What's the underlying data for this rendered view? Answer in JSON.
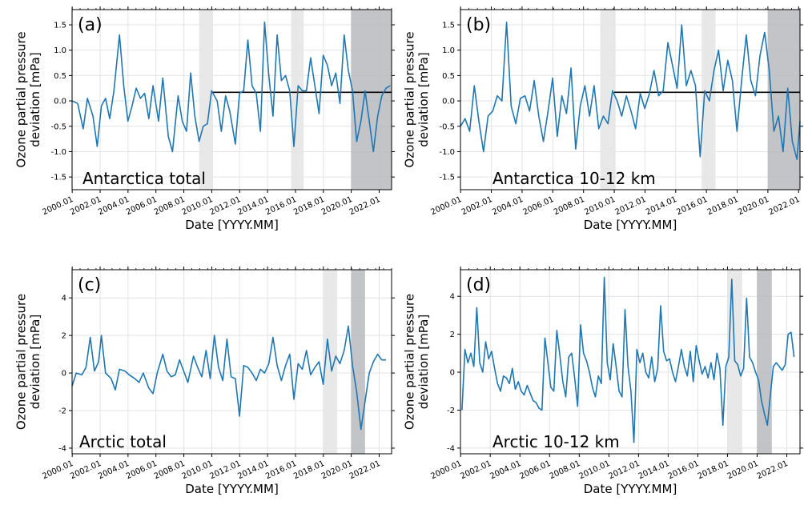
{
  "figure": {
    "xlabel": "Date [YYYY.MM]",
    "ylabel_line1": "Ozone partial pressure",
    "ylabel_line2": "deviation [mPa]"
  },
  "colors": {
    "series": "#1f77b4",
    "band_light": "#e6e6e6",
    "band_dark": "#b9babd",
    "reference_line": "#000000",
    "grid": "#e3e3e3"
  },
  "chart_data": [
    {
      "type": "line",
      "panel": "(a)",
      "region": "Antarctica total",
      "xlabel": "Date [YYYY.MM]",
      "ylabel": "Ozone partial pressure deviation [mPa]",
      "xlim": [
        2000.0,
        2022.9
      ],
      "ylim": [
        -1.75,
        1.8
      ],
      "xticks": [
        2000.01,
        2002.01,
        2004.01,
        2006.01,
        2008.01,
        2010.01,
        2012.01,
        2014.01,
        2016.01,
        2018.01,
        2020.01,
        2022.01
      ],
      "yticks": [
        -1.5,
        -1.0,
        -0.5,
        0.0,
        0.5,
        1.0,
        1.5
      ],
      "grid": true,
      "shaded_periods": [
        {
          "start": 2009.1,
          "end": 2010.1,
          "shade": "light"
        },
        {
          "start": 2015.7,
          "end": 2016.6,
          "shade": "light"
        },
        {
          "start": 2020.0,
          "end": 2022.9,
          "shade": "dark"
        }
      ],
      "reference_line": {
        "start": 2010.0,
        "end": 2022.9,
        "value": 0.17
      },
      "series": [
        {
          "x": [
            2000.0,
            2000.4,
            2000.8,
            2001.1,
            2001.5,
            2001.8,
            2002.1,
            2002.4,
            2002.7,
            2003.0,
            2003.4,
            2003.7,
            2004.0,
            2004.3,
            2004.6,
            2004.9,
            2005.2,
            2005.5,
            2005.8,
            2006.2,
            2006.5,
            2006.9,
            2007.2,
            2007.6,
            2007.9,
            2008.2,
            2008.5,
            2008.8,
            2009.1,
            2009.4,
            2009.7,
            2010.0,
            2010.4,
            2010.7,
            2011.0,
            2011.3,
            2011.7,
            2012.0,
            2012.3,
            2012.6,
            2012.9,
            2013.2,
            2013.5,
            2013.8,
            2014.1,
            2014.4,
            2014.7,
            2015.0,
            2015.3,
            2015.6,
            2015.9,
            2016.2,
            2016.5,
            2016.8,
            2017.1,
            2017.4,
            2017.7,
            2018.0,
            2018.3,
            2018.6,
            2018.9,
            2019.2,
            2019.5,
            2019.8,
            2020.1,
            2020.4,
            2020.7,
            2021.0,
            2021.3,
            2021.6,
            2021.9,
            2022.2,
            2022.5,
            2022.8
          ],
          "y": [
            0.0,
            -0.05,
            -0.55,
            0.05,
            -0.3,
            -0.9,
            -0.1,
            0.05,
            -0.35,
            0.2,
            1.3,
            0.3,
            -0.4,
            -0.1,
            0.25,
            0.05,
            0.15,
            -0.35,
            0.3,
            -0.4,
            0.45,
            -0.7,
            -1.0,
            0.1,
            -0.4,
            -0.6,
            0.55,
            -0.3,
            -0.8,
            -0.5,
            -0.45,
            0.2,
            0.0,
            -0.6,
            0.1,
            -0.2,
            -0.85,
            0.15,
            0.2,
            1.2,
            0.3,
            0.15,
            -0.6,
            1.55,
            0.5,
            -0.3,
            1.3,
            0.4,
            0.5,
            0.2,
            -0.9,
            0.3,
            0.2,
            0.2,
            0.85,
            0.3,
            -0.25,
            0.9,
            0.7,
            0.3,
            0.55,
            -0.05,
            1.3,
            0.6,
            0.2,
            -0.8,
            -0.4,
            0.2,
            -0.4,
            -1.0,
            -0.3,
            0.1,
            0.25,
            0.3
          ]
        }
      ]
    },
    {
      "type": "line",
      "panel": "(b)",
      "region": "Antarctica 10-12 km",
      "xlabel": "Date [YYYY.MM]",
      "ylabel": "Ozone partial pressure deviation [mPa]",
      "xlim": [
        2000.0,
        2022.1
      ],
      "ylim": [
        -1.75,
        1.8
      ],
      "xticks": [
        2000.01,
        2002.01,
        2004.01,
        2006.01,
        2008.01,
        2010.01,
        2012.01,
        2014.01,
        2016.01,
        2018.01,
        2020.01,
        2022.01
      ],
      "yticks": [
        -1.5,
        -1.0,
        -0.5,
        0.0,
        0.5,
        1.0,
        1.5
      ],
      "grid": true,
      "shaded_periods": [
        {
          "start": 2009.1,
          "end": 2010.1,
          "shade": "light"
        },
        {
          "start": 2015.7,
          "end": 2016.6,
          "shade": "light"
        },
        {
          "start": 2020.0,
          "end": 2022.1,
          "shade": "dark"
        }
      ],
      "reference_line": {
        "start": 2010.0,
        "end": 2022.1,
        "value": 0.17
      },
      "series": [
        {
          "x": [
            2000.0,
            2000.3,
            2000.6,
            2000.9,
            2001.2,
            2001.5,
            2001.8,
            2002.1,
            2002.4,
            2002.7,
            2003.0,
            2003.3,
            2003.6,
            2003.9,
            2004.2,
            2004.5,
            2004.8,
            2005.1,
            2005.4,
            2005.7,
            2006.0,
            2006.3,
            2006.6,
            2006.9,
            2007.2,
            2007.5,
            2007.8,
            2008.1,
            2008.4,
            2008.7,
            2009.0,
            2009.3,
            2009.6,
            2009.9,
            2010.2,
            2010.5,
            2010.8,
            2011.1,
            2011.4,
            2011.7,
            2012.0,
            2012.3,
            2012.6,
            2012.9,
            2013.2,
            2013.5,
            2013.8,
            2014.1,
            2014.4,
            2014.7,
            2015.0,
            2015.3,
            2015.6,
            2015.9,
            2016.2,
            2016.5,
            2016.8,
            2017.1,
            2017.4,
            2017.7,
            2018.0,
            2018.3,
            2018.6,
            2018.9,
            2019.2,
            2019.5,
            2019.8,
            2020.1,
            2020.4,
            2020.7,
            2021.0,
            2021.3,
            2021.6,
            2021.9,
            2022.1
          ],
          "y": [
            -0.5,
            -0.35,
            -0.6,
            0.3,
            -0.4,
            -1.0,
            -0.3,
            -0.2,
            0.1,
            0.0,
            1.55,
            -0.1,
            -0.45,
            0.05,
            0.1,
            -0.2,
            0.4,
            -0.3,
            -0.8,
            -0.2,
            0.45,
            -0.7,
            0.1,
            -0.25,
            0.65,
            -0.95,
            -0.1,
            0.3,
            -0.3,
            0.3,
            -0.55,
            -0.3,
            -0.45,
            0.2,
            0.0,
            -0.3,
            0.1,
            -0.2,
            -0.55,
            0.15,
            -0.15,
            0.15,
            0.6,
            0.1,
            0.2,
            1.15,
            0.7,
            0.25,
            1.5,
            0.3,
            0.6,
            0.3,
            -1.1,
            0.2,
            0.0,
            0.6,
            1.0,
            0.2,
            0.8,
            0.4,
            -0.6,
            0.4,
            1.3,
            0.4,
            0.1,
            0.9,
            1.35,
            0.6,
            -0.6,
            -0.3,
            -1.0,
            0.25,
            -0.8,
            -1.15,
            -0.4
          ]
        }
      ]
    },
    {
      "type": "line",
      "panel": "(c)",
      "region": "Arctic total",
      "xlabel": "Date [YYYY.MM]",
      "ylabel": "Ozone partial pressure deviation [mPa]",
      "xlim": [
        2000.0,
        2022.9
      ],
      "ylim": [
        -4.3,
        5.5
      ],
      "xticks": [
        2000.01,
        2002.01,
        2004.01,
        2006.01,
        2008.01,
        2010.01,
        2012.01,
        2014.01,
        2016.01,
        2018.01,
        2020.01,
        2022.01
      ],
      "yticks": [
        -4,
        -2,
        0,
        2,
        4
      ],
      "grid": true,
      "shaded_periods": [
        {
          "start": 2018.0,
          "end": 2019.0,
          "shade": "light"
        },
        {
          "start": 2020.0,
          "end": 2021.0,
          "shade": "dark"
        }
      ],
      "series": [
        {
          "x": [
            2000.0,
            2000.3,
            2000.7,
            2001.0,
            2001.3,
            2001.6,
            2001.9,
            2002.1,
            2002.4,
            2002.8,
            2003.1,
            2003.4,
            2003.8,
            2004.1,
            2004.5,
            2004.8,
            2005.1,
            2005.5,
            2005.8,
            2006.1,
            2006.5,
            2006.8,
            2007.1,
            2007.4,
            2007.7,
            2008.0,
            2008.3,
            2008.7,
            2009.0,
            2009.3,
            2009.6,
            2009.9,
            2010.2,
            2010.5,
            2010.8,
            2011.1,
            2011.4,
            2011.7,
            2012.0,
            2012.3,
            2012.6,
            2012.9,
            2013.2,
            2013.5,
            2013.8,
            2014.1,
            2014.4,
            2014.7,
            2015.0,
            2015.3,
            2015.6,
            2015.9,
            2016.2,
            2016.5,
            2016.8,
            2017.1,
            2017.4,
            2017.7,
            2018.0,
            2018.3,
            2018.6,
            2018.9,
            2019.2,
            2019.5,
            2019.8,
            2020.1,
            2020.4,
            2020.7,
            2021.0,
            2021.3,
            2021.6,
            2021.9,
            2022.2,
            2022.5
          ],
          "y": [
            -0.7,
            0.0,
            -0.1,
            0.3,
            1.9,
            0.1,
            0.6,
            2.0,
            0.0,
            -0.3,
            -0.9,
            0.2,
            0.1,
            -0.1,
            -0.3,
            -0.5,
            0.0,
            -0.8,
            -1.1,
            0.0,
            1.0,
            0.1,
            -0.2,
            -0.1,
            0.7,
            0.1,
            -0.5,
            0.9,
            0.3,
            -0.2,
            1.2,
            -0.3,
            2.0,
            0.3,
            -0.4,
            1.8,
            -0.2,
            -0.3,
            -2.3,
            0.4,
            0.3,
            0.0,
            -0.4,
            0.2,
            0.0,
            0.5,
            1.9,
            0.4,
            -0.4,
            0.4,
            1.0,
            -1.4,
            0.5,
            0.2,
            1.2,
            -0.1,
            0.3,
            0.6,
            -0.6,
            1.8,
            0.1,
            0.9,
            0.5,
            1.2,
            2.5,
            0.4,
            -1.0,
            -3.0,
            -1.5,
            0.0,
            0.6,
            1.0,
            0.7,
            0.7
          ]
        }
      ]
    },
    {
      "type": "line",
      "panel": "(d)",
      "region": "Arctic 10-12 km",
      "xlabel": "Date [YYYY.MM]",
      "ylabel": "Ozone partial pressure deviation [mPa]",
      "xlim": [
        2000.0,
        2022.9
      ],
      "ylim": [
        -4.3,
        5.4
      ],
      "xticks": [
        2000.01,
        2002.01,
        2004.01,
        2006.01,
        2008.01,
        2010.01,
        2012.01,
        2014.01,
        2016.01,
        2018.01,
        2020.01,
        2022.01
      ],
      "yticks": [
        -4,
        -2,
        0,
        2,
        4
      ],
      "grid": true,
      "shaded_periods": [
        {
          "start": 2018.0,
          "end": 2019.0,
          "shade": "light"
        },
        {
          "start": 2020.0,
          "end": 2021.0,
          "shade": "dark"
        }
      ],
      "series": [
        {
          "x": [
            2000.1,
            2000.3,
            2000.5,
            2000.7,
            2000.9,
            2001.1,
            2001.3,
            2001.5,
            2001.7,
            2001.9,
            2002.1,
            2002.3,
            2002.5,
            2002.7,
            2002.9,
            2003.1,
            2003.3,
            2003.5,
            2003.7,
            2003.9,
            2004.1,
            2004.3,
            2004.5,
            2004.7,
            2004.9,
            2005.1,
            2005.3,
            2005.5,
            2005.7,
            2005.9,
            2006.1,
            2006.3,
            2006.5,
            2006.7,
            2006.9,
            2007.1,
            2007.3,
            2007.5,
            2007.7,
            2007.9,
            2008.1,
            2008.3,
            2008.5,
            2008.7,
            2008.9,
            2009.1,
            2009.3,
            2009.5,
            2009.7,
            2009.9,
            2010.1,
            2010.3,
            2010.5,
            2010.7,
            2010.9,
            2011.1,
            2011.3,
            2011.5,
            2011.7,
            2011.9,
            2012.1,
            2012.3,
            2012.5,
            2012.7,
            2012.9,
            2013.1,
            2013.3,
            2013.5,
            2013.7,
            2013.9,
            2014.1,
            2014.3,
            2014.5,
            2014.7,
            2014.9,
            2015.1,
            2015.3,
            2015.5,
            2015.7,
            2015.9,
            2016.1,
            2016.3,
            2016.5,
            2016.7,
            2016.9,
            2017.1,
            2017.3,
            2017.5,
            2017.7,
            2017.9,
            2018.1,
            2018.3,
            2018.5,
            2018.7,
            2018.9,
            2019.1,
            2019.3,
            2019.5,
            2019.7,
            2019.9,
            2020.1,
            2020.3,
            2020.5,
            2020.7,
            2020.9,
            2021.1,
            2021.3,
            2021.5,
            2021.7,
            2021.9,
            2022.1,
            2022.3,
            2022.5
          ],
          "y": [
            -2.0,
            1.2,
            0.5,
            1.0,
            0.3,
            3.4,
            0.5,
            0.0,
            1.6,
            0.7,
            1.1,
            0.2,
            -0.6,
            -1.0,
            -0.2,
            -0.3,
            -0.6,
            0.2,
            -0.9,
            -0.5,
            -1.0,
            -1.2,
            -0.7,
            -1.1,
            -1.5,
            -1.6,
            -1.9,
            -2.0,
            1.8,
            0.5,
            -0.8,
            -1.0,
            2.2,
            0.9,
            -0.5,
            -1.3,
            0.8,
            1.0,
            -0.3,
            -1.8,
            2.5,
            1.0,
            0.6,
            0.0,
            -0.8,
            -1.3,
            -0.2,
            -0.6,
            5.0,
            0.5,
            -0.4,
            1.5,
            0.3,
            -1.0,
            -1.3,
            3.3,
            0.3,
            -1.0,
            -3.7,
            1.2,
            0.5,
            1.0,
            0.0,
            -0.3,
            0.8,
            -0.5,
            0.2,
            3.5,
            1.1,
            0.6,
            0.7,
            0.0,
            -0.5,
            0.3,
            1.2,
            0.3,
            -0.2,
            1.1,
            -0.5,
            1.4,
            0.6,
            -0.1,
            0.3,
            -0.3,
            0.5,
            -0.4,
            1.0,
            0.2,
            -2.8,
            0.3,
            0.8,
            4.9,
            0.6,
            0.4,
            -0.2,
            0.2,
            3.9,
            0.8,
            0.5,
            0.0,
            -0.4,
            -1.5,
            -2.2,
            -2.8,
            -1.2,
            0.3,
            0.5,
            0.3,
            0.1,
            0.4,
            2.0,
            2.1,
            0.8
          ]
        }
      ]
    }
  ]
}
